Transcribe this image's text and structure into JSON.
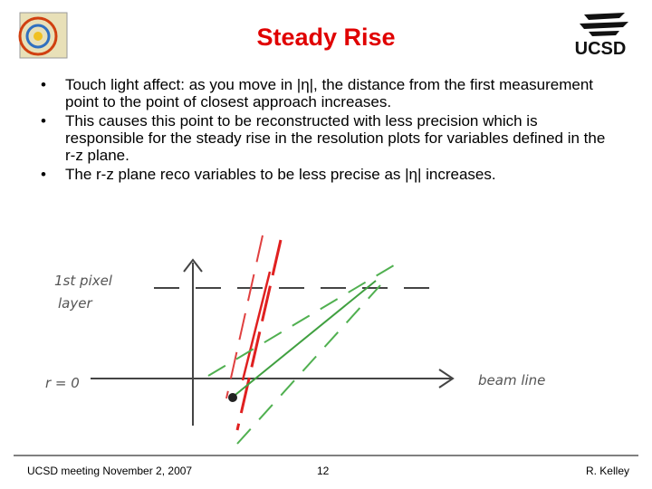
{
  "header": {
    "title": "Steady Rise",
    "logo_text": "UCSD"
  },
  "bullets": [
    "Touch light affect: as you move in |η|, the distance from the first measurement point to the point of closest approach increases.",
    "This causes this point to be reconstructed with less precision which is responsible for the steady rise in the resolution plots for variables defined in the r-z plane.",
    "The r-z plane reco variables to be less precise as |η| increases."
  ],
  "diagram": {
    "layer_label_1": "1st pixel",
    "layer_label_2": "layer",
    "origin_label": "r = 0",
    "axis_label": "beam line"
  },
  "footer": {
    "left": "UCSD meeting November 2, 2007",
    "center": "12",
    "right": "R. Kelley"
  }
}
